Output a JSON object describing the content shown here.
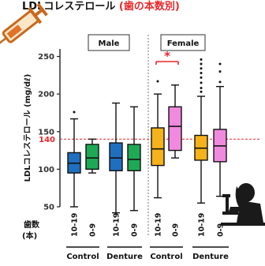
{
  "title": "LDLコレステロール (歯の本数別)",
  "chart_data": {
    "type": "box",
    "ylabel": "LDLコレステロール (mg/dℓ)",
    "ylim": [
      50,
      260
    ],
    "yticks": [
      50,
      100,
      150,
      200,
      250
    ],
    "reference_line": {
      "value": 140,
      "label": "140",
      "color": "#e8272a"
    },
    "row_header": "歯数",
    "row_header_unit": "(本)",
    "tooth_count_labels": [
      "10-19",
      "0-9",
      "10-19",
      "0-9",
      "10-19",
      "0-9",
      "10-19",
      "0-9"
    ],
    "group_labels": [
      "Control",
      "Denture",
      "Control",
      "Denture"
    ],
    "panels": [
      {
        "name": "Male"
      },
      {
        "name": "Female"
      }
    ],
    "significance": {
      "symbol": "*",
      "panel": "Female",
      "group": "Control",
      "color": "#e8272a"
    },
    "boxes": [
      {
        "panel": "Male",
        "group": "Control",
        "teeth": "10-19",
        "color": "#1f6fbf",
        "whisker_low": 50,
        "q1": 95,
        "median": 108,
        "q3": 122,
        "whisker_high": 167,
        "outliers": [
          176
        ]
      },
      {
        "panel": "Male",
        "group": "Control",
        "teeth": "0-9",
        "color": "#1eaa55",
        "whisker_low": 95,
        "q1": 100,
        "median": 115,
        "q3": 133,
        "whisker_high": 140,
        "outliers": []
      },
      {
        "panel": "Male",
        "group": "Denture",
        "teeth": "10-19",
        "color": "#1f6fbf",
        "whisker_low": 42,
        "q1": 98,
        "median": 115,
        "q3": 135,
        "whisker_high": 188,
        "outliers": []
      },
      {
        "panel": "Male",
        "group": "Denture",
        "teeth": "0-9",
        "color": "#1eaa55",
        "whisker_low": 45,
        "q1": 98,
        "median": 113,
        "q3": 133,
        "whisker_high": 183,
        "outliers": []
      },
      {
        "panel": "Female",
        "group": "Control",
        "teeth": "10-19",
        "color": "#f5b21a",
        "whisker_low": 62,
        "q1": 105,
        "median": 127,
        "q3": 155,
        "whisker_high": 200,
        "outliers": [
          217
        ]
      },
      {
        "panel": "Female",
        "group": "Control",
        "teeth": "0-9",
        "color": "#f08adf",
        "whisker_low": 115,
        "q1": 125,
        "median": 157,
        "q3": 183,
        "whisker_high": 212,
        "outliers": []
      },
      {
        "panel": "Female",
        "group": "Denture",
        "teeth": "10-19",
        "color": "#f5b21a",
        "whisker_low": 55,
        "q1": 112,
        "median": 128,
        "q3": 145,
        "whisker_high": 197,
        "outliers": [
          203,
          208,
          215,
          222,
          228,
          234,
          240,
          246
        ]
      },
      {
        "panel": "Female",
        "group": "Denture",
        "teeth": "0-9",
        "color": "#f08adf",
        "whisker_low": 64,
        "q1": 110,
        "median": 131,
        "q3": 153,
        "whisker_high": 210,
        "outliers": [
          216,
          230,
          240
        ]
      }
    ]
  }
}
